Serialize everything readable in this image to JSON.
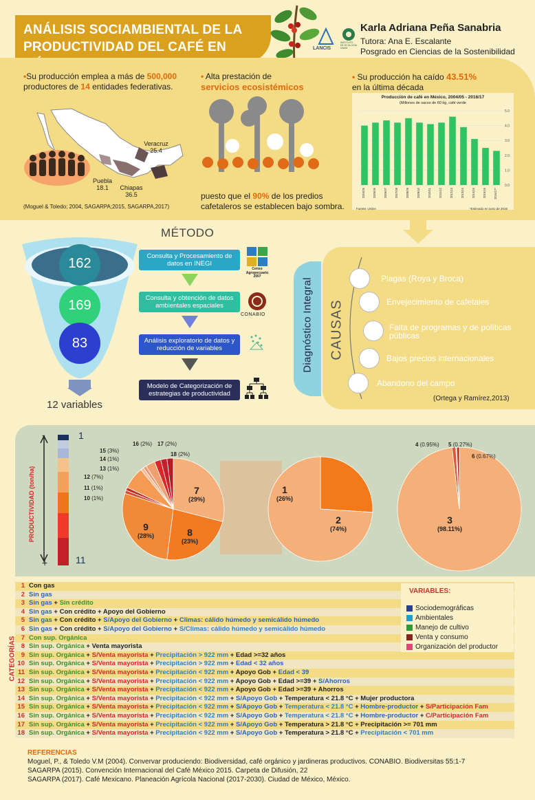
{
  "header": {
    "title_line1": "ANÁLISIS SOCIAMBIENTAL DE LA",
    "title_line2": "PRODUCTIVIDAD DEL CAFÉ EN MÉXICO",
    "author": "Karla Adriana Peña Sanabria",
    "tutor": "Tutora: Ana E. Escalante",
    "program": "Posgrado en Ciencias de la Sostenibilidad",
    "logo1": "LANCIS",
    "logo2_line1": "INSTITUTO",
    "logo2_line2": "DE ECOLOGÍA",
    "logo2_line3": "UNAM"
  },
  "colors": {
    "gold": "#d9a11e",
    "orange": "#e26a0c",
    "cream": "#fbf1c8",
    "sand": "#f4dc86"
  },
  "intro": {
    "stat1_a": "Su producción emplea a más de ",
    "stat1_num": "500,000",
    "stat1_b": "productores de ",
    "stat1_num2": "14",
    "stat1_c": " entidades federativas.",
    "map_labels": [
      {
        "name": "Veracruz",
        "value": "25.4"
      },
      {
        "name": "Puebla",
        "value": "18.1"
      },
      {
        "name": "Chiapas",
        "value": "36.5"
      }
    ],
    "source1": "(Moguel & Toledo; 2004, SAGARPA;2015, SAGARPA,2017)",
    "stat2_a": "Alta prestación de",
    "stat2_b": "servicios ecosistémicos",
    "stat2_c": "puesto que el ",
    "stat2_num": "90%",
    "stat2_d": " de los predios",
    "stat2_e": "cafetaleros se establecen bajo sombra.",
    "stat3_a": "Su producción ha caído ",
    "stat3_num": "43.51%",
    "stat3_b": "en la última década"
  },
  "chart_data": {
    "type": "bar",
    "title": "Producción de café en México, 2004/05 - 2016/17",
    "subtitle": "(Millones de sacos de 60 kg, café verde",
    "categories": [
      "2004/05",
      "2005/06",
      "2006/07",
      "2007/08",
      "2008/09",
      "2009/10",
      "2010/11",
      "2011/12",
      "2012/13",
      "2013/14",
      "2014/15",
      "2015/16",
      "2016/17*"
    ],
    "values": [
      4.0,
      4.2,
      4.35,
      4.2,
      4.5,
      4.2,
      4.1,
      4.2,
      4.6,
      3.9,
      3.1,
      2.5,
      2.3
    ],
    "ylim": [
      0,
      5
    ],
    "yticks": [
      "0.0",
      "1.0",
      "2.0",
      "3.0",
      "4.0",
      "5.0"
    ],
    "source": "Fuente: USDA",
    "note": "*Estimado en junio de 2016",
    "color": "#2fc463"
  },
  "method": {
    "title": "MÉTODO",
    "funnel": [
      "162",
      "169",
      "83"
    ],
    "result": "12 variables",
    "steps": [
      "Consulta y Procesamiento de datos en INEGI",
      "Consulta y obtención de datos ambientales espaciales",
      "Análisis exploratorio de datos y reducción de variables",
      "Modelo de Categorización de estrategias de productividad"
    ],
    "logo_inegi_line1": "Censo",
    "logo_inegi_line2": "Agropecuario",
    "logo_inegi_line3": "2007",
    "logo_conabio": "CONABIO",
    "diagnostic": "Diagnóstico Integral"
  },
  "causes": {
    "label": "CAUSAS",
    "items": [
      {
        "text": "Plagas (Roya y Broca)",
        "color": "#e8781e"
      },
      {
        "text": "Envejecimiento de cafetales",
        "color": "#dc8650"
      },
      {
        "text": "Falta de programas y de políticas públicas",
        "color": "#cf9174"
      },
      {
        "text": "Bajos precios internacionales",
        "color": "#c49990"
      },
      {
        "text": "Abandono del campo",
        "color": "#b5a2a2"
      }
    ],
    "source": "(Ortega y Ramírez,2013)"
  },
  "pies": {
    "axis_label": "PRODUCTIVIDAD (ton/ha)",
    "axis_top": "1",
    "axis_bottom": "11",
    "minus": "-",
    "plus": "+",
    "pie1": [
      {
        "num": "7",
        "pct": "(29%)"
      },
      {
        "num": "8",
        "pct": "(23%)"
      },
      {
        "num": "9",
        "pct": "(28%)"
      },
      {
        "num": "10",
        "pct": "(1%)"
      },
      {
        "num": "11",
        "pct": "(1%)"
      },
      {
        "num": "12",
        "pct": "(7%)"
      },
      {
        "num": "13",
        "pct": "(1%)"
      },
      {
        "num": "14",
        "pct": "(1%)"
      },
      {
        "num": "15",
        "pct": "(3%)"
      },
      {
        "num": "16",
        "pct": "(2%)"
      },
      {
        "num": "17",
        "pct": "(2%)"
      },
      {
        "num": "18",
        "pct": "(2%)"
      }
    ],
    "pie2": [
      {
        "num": "1",
        "pct": "(26%)"
      },
      {
        "num": "2",
        "pct": "(74%)"
      }
    ],
    "pie3": [
      {
        "num": "3",
        "pct": "(98.11%)"
      },
      {
        "num": "4",
        "pct": "(0.95%)"
      },
      {
        "num": "5",
        "pct": "(0.27%)"
      },
      {
        "num": "6",
        "pct": "(0.67%)"
      }
    ]
  },
  "categories": {
    "side_label": "CATEGORÍAS",
    "rows": [
      {
        "n": "1",
        "bg": "#f4dc86",
        "parts": [
          [
            "k",
            "Con gas"
          ]
        ]
      },
      {
        "n": "2",
        "bg": "#f1e6c2",
        "parts": [
          [
            "b",
            "Sin gas"
          ]
        ]
      },
      {
        "n": "3",
        "bg": "#f4dc86",
        "parts": [
          [
            "b",
            "Sin gas"
          ],
          [
            "k",
            " + "
          ],
          [
            "g",
            "Sin crédito"
          ]
        ]
      },
      {
        "n": "4",
        "bg": "#f1e6c2",
        "parts": [
          [
            "b",
            "Sin gas"
          ],
          [
            "k",
            " + Con crédito  + Apoyo del Gobierno"
          ]
        ]
      },
      {
        "n": "5",
        "bg": "#f4dc86",
        "parts": [
          [
            "b",
            "Sin gas"
          ],
          [
            "k",
            " + Con crédito  + "
          ],
          [
            "b",
            "S/Apoyo del Gobierno"
          ],
          [
            "k",
            " + "
          ],
          [
            "b",
            "Climas: cálido húmedo y semicálido húmedo"
          ]
        ]
      },
      {
        "n": "6",
        "bg": "#f1e6c2",
        "parts": [
          [
            "b",
            "Sin gas"
          ],
          [
            "k",
            " + Con crédito  + "
          ],
          [
            "b",
            "S/Apoyo del Gobierno"
          ],
          [
            "k",
            " + "
          ],
          [
            "bl",
            "S/Climas: cálido húmedo y semicálido húmedo"
          ]
        ]
      },
      {
        "n": "7",
        "bg": "#f4dc86",
        "parts": [
          [
            "g",
            "Con sup. Orgánica"
          ]
        ]
      },
      {
        "n": "8",
        "bg": "#f1e6c2",
        "parts": [
          [
            "g",
            "Sin sup. Orgánica"
          ],
          [
            "k",
            " + Venta mayorista"
          ]
        ]
      },
      {
        "n": "9",
        "bg": "#f4dc86",
        "parts": [
          [
            "g",
            "Sin sup. Orgánica"
          ],
          [
            "k",
            " + "
          ],
          [
            "r",
            "S/Venta mayorista"
          ],
          [
            "k",
            " + "
          ],
          [
            "bl",
            "Precipitación > 922 mm"
          ],
          [
            "k",
            " + Edad >=32 años"
          ]
        ]
      },
      {
        "n": "10",
        "bg": "#f1e6c2",
        "parts": [
          [
            "g",
            "Sin sup. Orgánica"
          ],
          [
            "k",
            " + "
          ],
          [
            "r",
            "S/Venta mayorista"
          ],
          [
            "k",
            " + "
          ],
          [
            "bl",
            "Precipitación > 922 mm"
          ],
          [
            "k",
            " + "
          ],
          [
            "b",
            "Edad < 32 años"
          ]
        ]
      },
      {
        "n": "11",
        "bg": "#f4dc86",
        "parts": [
          [
            "g",
            "Sin sup. Orgánica"
          ],
          [
            "k",
            " + "
          ],
          [
            "r",
            "S/Venta mayorista"
          ],
          [
            "k",
            " + "
          ],
          [
            "bl",
            "Precipitación < 922 mm"
          ],
          [
            "k",
            " + Apoyo Gob  + "
          ],
          [
            "b",
            "Edad < 39"
          ]
        ]
      },
      {
        "n": "12",
        "bg": "#f1e6c2",
        "parts": [
          [
            "g",
            "Sin sup. Orgánica"
          ],
          [
            "k",
            " + "
          ],
          [
            "r",
            "S/Venta mayorista"
          ],
          [
            "k",
            " + "
          ],
          [
            "bl",
            "Precipitación < 922 mm"
          ],
          [
            "k",
            " + Apoyo Gob + Edad >=39 + "
          ],
          [
            "b",
            " S/Ahorros"
          ]
        ]
      },
      {
        "n": "13",
        "bg": "#f4dc86",
        "parts": [
          [
            "g",
            "Sin sup. Orgánica"
          ],
          [
            "k",
            " + "
          ],
          [
            "r",
            "S/Venta mayorista"
          ],
          [
            "k",
            " + "
          ],
          [
            "bl",
            "Precipitación < 922 mm"
          ],
          [
            "k",
            " + Apoyo Gob  + Edad >=39 +  Ahorros"
          ]
        ]
      },
      {
        "n": "14",
        "bg": "#f1e6c2",
        "parts": [
          [
            "g",
            "Sin sup. Orgánica"
          ],
          [
            "k",
            " + "
          ],
          [
            "r",
            "S/Venta mayorista"
          ],
          [
            "k",
            " + "
          ],
          [
            "bl",
            "Precipitación < 922 mm"
          ],
          [
            "k",
            " + "
          ],
          [
            "b",
            "S/Apoyo Gob"
          ],
          [
            "k",
            " + Temperatura < 21.8 °C + Mujer productora"
          ]
        ]
      },
      {
        "n": "15",
        "bg": "#f4dc86",
        "parts": [
          [
            "g",
            "Sin sup. Orgánica"
          ],
          [
            "k",
            " + "
          ],
          [
            "r",
            "S/Venta mayorista"
          ],
          [
            "k",
            " + "
          ],
          [
            "bl",
            "Precipitación < 922 mm"
          ],
          [
            "k",
            " + "
          ],
          [
            "b",
            "S/Apoyo Gob"
          ],
          [
            "k",
            " + "
          ],
          [
            "bl",
            "Temperatura < 21.8 °C"
          ],
          [
            "k",
            " + "
          ],
          [
            "b",
            "Hombre-productor"
          ],
          [
            "k",
            " + "
          ],
          [
            "r",
            "S/Participación Fam"
          ]
        ]
      },
      {
        "n": "16",
        "bg": "#f1e6c2",
        "parts": [
          [
            "g",
            "Sin sup. Orgánica"
          ],
          [
            "k",
            " + "
          ],
          [
            "r",
            "S/Venta mayorista"
          ],
          [
            "k",
            " + "
          ],
          [
            "bl",
            "Precipitación < 922 mm"
          ],
          [
            "k",
            " + "
          ],
          [
            "b",
            "S/Apoyo Gob"
          ],
          [
            "k",
            " + "
          ],
          [
            "bl",
            "Temperatura < 21.8 °C"
          ],
          [
            "k",
            " + "
          ],
          [
            "b",
            "Hombre-productor"
          ],
          [
            "k",
            " + "
          ],
          [
            "r",
            "C/Participación Fam"
          ]
        ]
      },
      {
        "n": "17",
        "bg": "#f4dc86",
        "parts": [
          [
            "g",
            "Sin sup. Orgánica"
          ],
          [
            "k",
            " + "
          ],
          [
            "r",
            "S/Venta mayorista"
          ],
          [
            "k",
            " + "
          ],
          [
            "bl",
            "Precipitación < 922 mm"
          ],
          [
            "k",
            " + "
          ],
          [
            "b",
            "S/Apoyo Gob"
          ],
          [
            "k",
            " + Temperatura > 21.8 °C + Precipitación >= 701 mm"
          ]
        ]
      },
      {
        "n": "18",
        "bg": "#f1e6c2",
        "parts": [
          [
            "g",
            "Sin sup. Orgánica"
          ],
          [
            "k",
            " + "
          ],
          [
            "r",
            "S/Venta mayorista"
          ],
          [
            "k",
            " + "
          ],
          [
            "bl",
            "Precipitación < 922 mm"
          ],
          [
            "k",
            " + "
          ],
          [
            "b",
            "S/Apoyo Gob"
          ],
          [
            "k",
            " + Temperatura > 21.8 °C + "
          ],
          [
            "bl",
            "Precipitación <  701 mm"
          ]
        ]
      }
    ]
  },
  "variables_legend": {
    "title": "VARIABLES:",
    "items": [
      {
        "label": "Sociodemográficas",
        "color": "#2a3f8f"
      },
      {
        "label": "Ambientales",
        "color": "#1f9fd0"
      },
      {
        "label": "Manejo de cultivo",
        "color": "#2a9a3a"
      },
      {
        "label": "Venta y consumo",
        "color": "#8a2020"
      },
      {
        "label": "Organización del productor",
        "color": "#e0457a"
      }
    ]
  },
  "references": {
    "title": "REFERENCIAS",
    "items": [
      "Moguel, P., & Toledo V.M (2004). Convervar produciendo: Biodiversidad, café orgánico y jardineras productivos. CONABIO. Biodiversitas 55:1-7",
      "SAGARPA (2015). Convención Internacional del Café México 2015. Carpeta de Difusión, 22",
      "SAGARPA (2017). Café Mexicano. Planeación Agrícola Nacional (2017-2030). Ciudad de México, México."
    ]
  }
}
